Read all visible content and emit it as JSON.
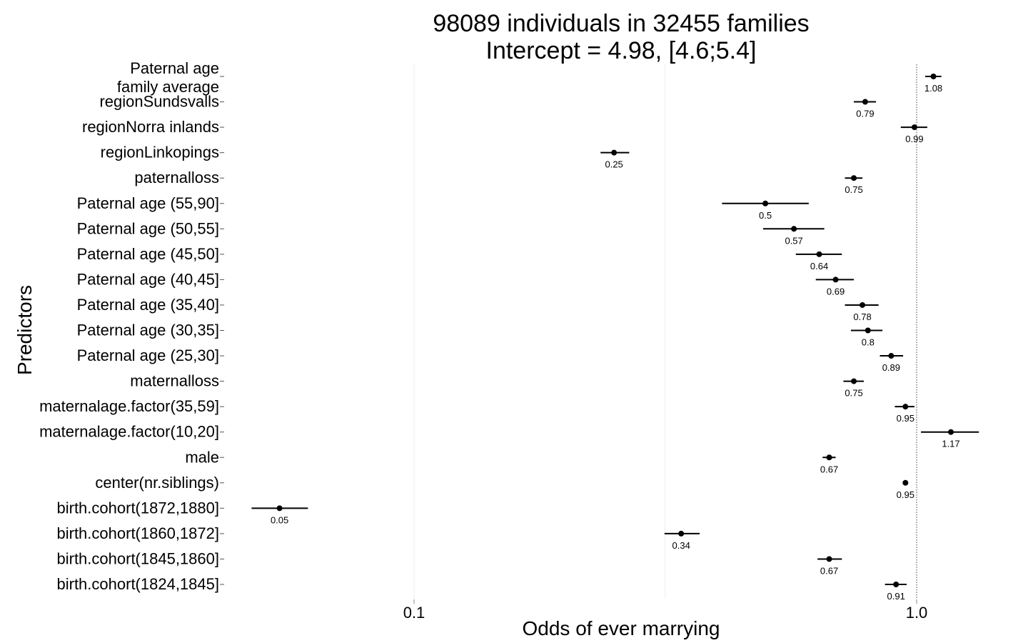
{
  "chart_data": {
    "type": "scatter",
    "subtype": "forest-plot",
    "title_lines": [
      "98089 individuals in 32455 families",
      "Intercept = 4.98, [4.6;5.4]"
    ],
    "xlabel": "Odds of ever marrying",
    "ylabel": "Predictors",
    "x_scale": "log",
    "xlim": [
      0.039,
      1.5
    ],
    "x_ticks": [
      {
        "value": 0.1,
        "label": "0.1"
      },
      {
        "value": 1.0,
        "label": "1.0"
      }
    ],
    "x_minor_gridlines": [
      0.316
    ],
    "reference_line": 1.0,
    "grid": true,
    "categories": [
      {
        "label_lines": [
          "Paternal age",
          "family average"
        ],
        "estimate": 1.08,
        "lower": 1.04,
        "upper": 1.12,
        "value_label": "1.08"
      },
      {
        "label_lines": [
          "regionSundsvalls"
        ],
        "estimate": 0.79,
        "lower": 0.75,
        "upper": 0.83,
        "value_label": "0.79"
      },
      {
        "label_lines": [
          "regionNorra inlands"
        ],
        "estimate": 0.99,
        "lower": 0.93,
        "upper": 1.05,
        "value_label": "0.99"
      },
      {
        "label_lines": [
          "regionLinkopings"
        ],
        "estimate": 0.25,
        "lower": 0.235,
        "upper": 0.268,
        "value_label": "0.25"
      },
      {
        "label_lines": [
          "paternalloss"
        ],
        "estimate": 0.75,
        "lower": 0.72,
        "upper": 0.78,
        "value_label": "0.75"
      },
      {
        "label_lines": [
          "Paternal age (55,90]"
        ],
        "estimate": 0.5,
        "lower": 0.41,
        "upper": 0.61,
        "value_label": "0.5"
      },
      {
        "label_lines": [
          "Paternal age (50,55]"
        ],
        "estimate": 0.57,
        "lower": 0.495,
        "upper": 0.655,
        "value_label": "0.57"
      },
      {
        "label_lines": [
          "Paternal age (45,50]"
        ],
        "estimate": 0.64,
        "lower": 0.575,
        "upper": 0.71,
        "value_label": "0.64"
      },
      {
        "label_lines": [
          "Paternal age (40,45]"
        ],
        "estimate": 0.69,
        "lower": 0.63,
        "upper": 0.75,
        "value_label": "0.69"
      },
      {
        "label_lines": [
          "Paternal age (35,40]"
        ],
        "estimate": 0.78,
        "lower": 0.72,
        "upper": 0.84,
        "value_label": "0.78"
      },
      {
        "label_lines": [
          "Paternal age (30,35]"
        ],
        "estimate": 0.8,
        "lower": 0.74,
        "upper": 0.855,
        "value_label": "0.8"
      },
      {
        "label_lines": [
          "Paternal age (25,30]"
        ],
        "estimate": 0.89,
        "lower": 0.845,
        "upper": 0.94,
        "value_label": "0.89"
      },
      {
        "label_lines": [
          "maternalloss"
        ],
        "estimate": 0.75,
        "lower": 0.715,
        "upper": 0.785,
        "value_label": "0.75"
      },
      {
        "label_lines": [
          "maternalage.factor(35,59]"
        ],
        "estimate": 0.95,
        "lower": 0.905,
        "upper": 0.99,
        "value_label": "0.95"
      },
      {
        "label_lines": [
          "maternalage.factor(10,20]"
        ],
        "estimate": 1.17,
        "lower": 1.02,
        "upper": 1.33,
        "value_label": "1.17"
      },
      {
        "label_lines": [
          "male"
        ],
        "estimate": 0.67,
        "lower": 0.65,
        "upper": 0.69,
        "value_label": "0.67"
      },
      {
        "label_lines": [
          "center(nr.siblings)"
        ],
        "estimate": 0.95,
        "lower": 0.94,
        "upper": 0.96,
        "value_label": "0.95"
      },
      {
        "label_lines": [
          "birth.cohort(1872,1880]"
        ],
        "estimate": 0.054,
        "lower": 0.0475,
        "upper": 0.0615,
        "value_label": "0.05"
      },
      {
        "label_lines": [
          "birth.cohort(1860,1872]"
        ],
        "estimate": 0.34,
        "lower": 0.315,
        "upper": 0.37,
        "value_label": "0.34"
      },
      {
        "label_lines": [
          "birth.cohort(1845,1860]"
        ],
        "estimate": 0.67,
        "lower": 0.635,
        "upper": 0.71,
        "value_label": "0.67"
      },
      {
        "label_lines": [
          "birth.cohort(1824,1845]"
        ],
        "estimate": 0.91,
        "lower": 0.865,
        "upper": 0.955,
        "value_label": "0.91"
      }
    ],
    "colors": {
      "point": "#000000",
      "interval": "#000000",
      "gridline": "#ededed",
      "reference": "#444444"
    }
  }
}
